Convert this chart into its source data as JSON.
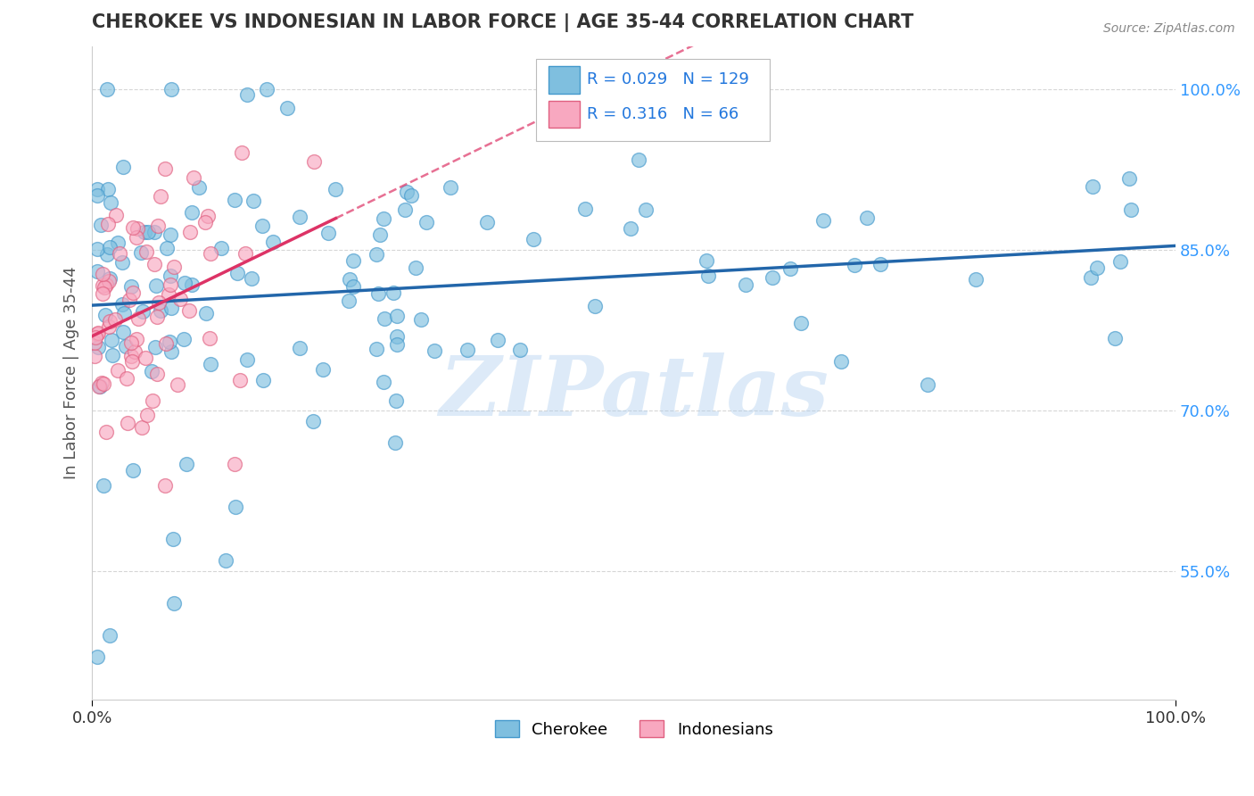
{
  "title": "CHEROKEE VS INDONESIAN IN LABOR FORCE | AGE 35-44 CORRELATION CHART",
  "source_text": "Source: ZipAtlas.com",
  "ylabel": "In Labor Force | Age 35-44",
  "xlim": [
    0.0,
    1.0
  ],
  "ylim": [
    0.43,
    1.04
  ],
  "yticks": [
    0.55,
    0.7,
    0.85,
    1.0
  ],
  "ytick_labels": [
    "55.0%",
    "70.0%",
    "85.0%",
    "100.0%"
  ],
  "xticks": [
    0.0,
    1.0
  ],
  "xtick_labels": [
    "0.0%",
    "100.0%"
  ],
  "cherokee_R": 0.029,
  "cherokee_N": 129,
  "indonesian_R": 0.316,
  "indonesian_N": 66,
  "cherokee_color": "#7fbfdf",
  "indonesian_color": "#f8a8c0",
  "cherokee_edge_color": "#4499cc",
  "indonesian_edge_color": "#e06080",
  "cherokee_line_color": "#2266aa",
  "indonesian_line_color": "#dd3366",
  "watermark": "ZIPatlas",
  "watermark_color": "#aaccee",
  "background_color": "#ffffff",
  "grid_color": "#cccccc",
  "title_color": "#333333",
  "ytick_color": "#3399ff",
  "legend_R_color": "#2277dd"
}
